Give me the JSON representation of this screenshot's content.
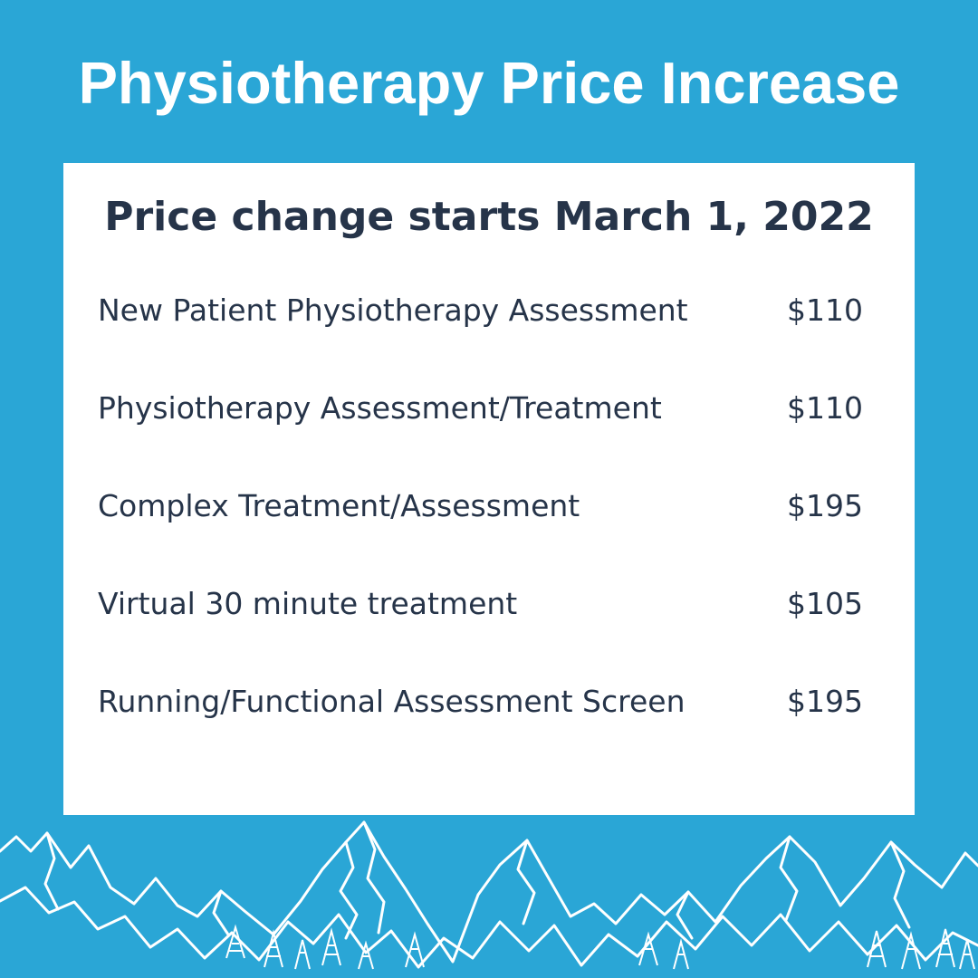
{
  "header": {
    "title": "Physiotherapy Price Increase"
  },
  "card": {
    "subtitle": "Price change starts March 1, 2022",
    "items": [
      {
        "service": "New Patient Physiotherapy Assessment",
        "price": "$110"
      },
      {
        "service": "Physiotherapy Assessment/Treatment",
        "price": "$110"
      },
      {
        "service": "Complex Treatment/Assessment",
        "price": "$195"
      },
      {
        "service": "Virtual 30 minute treatment",
        "price": "$105"
      },
      {
        "service": "Running/Functional Assessment Screen",
        "price": "$195"
      }
    ]
  },
  "colors": {
    "background": "#2aa6d6",
    "card": "#ffffff",
    "text": "#263449",
    "title": "#ffffff",
    "mountain_line": "#ffffff"
  },
  "decoration": {
    "icon": "mountain-range-illustration"
  }
}
